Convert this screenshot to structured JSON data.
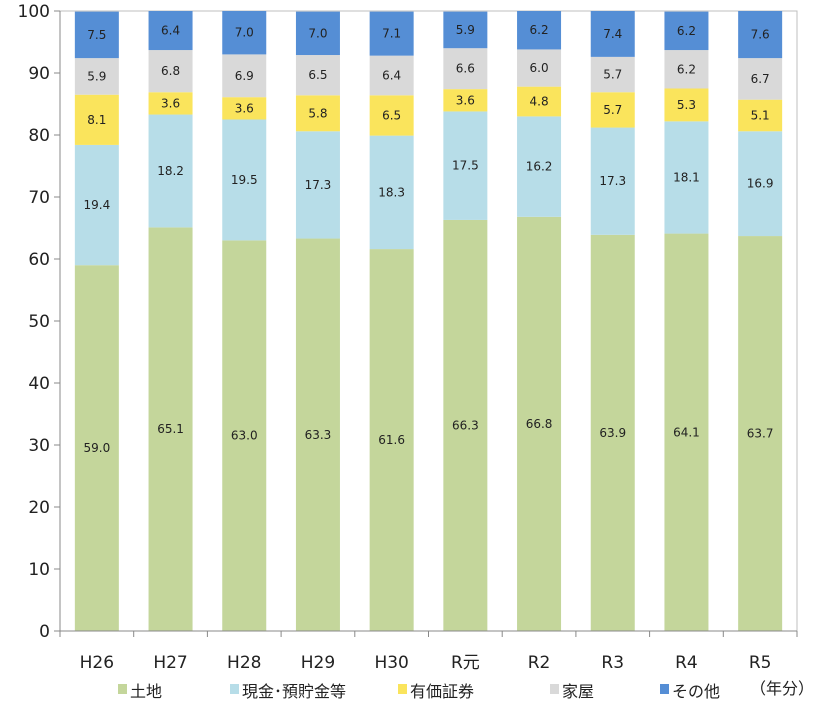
{
  "chart_data": {
    "type": "bar",
    "stacked": true,
    "title": "",
    "xlabel": "",
    "ylabel": "",
    "ylim": [
      0,
      100
    ],
    "yticks": [
      "0",
      "10",
      "20",
      "30",
      "40",
      "50",
      "60",
      "70",
      "80",
      "90",
      "100"
    ],
    "categories": [
      "H26",
      "H27",
      "H28",
      "H29",
      "H30",
      "R元",
      "R2",
      "R3",
      "R4",
      "R5"
    ],
    "unit_label": "（年分）",
    "legend_position": "bottom",
    "series": [
      {
        "name": "土地",
        "color": "#c4d69b",
        "values": [
          59.0,
          65.1,
          63.0,
          63.3,
          61.6,
          66.3,
          66.8,
          63.9,
          64.1,
          63.7
        ]
      },
      {
        "name": "現金･預貯金等",
        "color": "#b7dde8",
        "values": [
          19.4,
          18.2,
          19.5,
          17.3,
          18.3,
          17.5,
          16.2,
          17.3,
          18.1,
          16.9
        ]
      },
      {
        "name": "有価証券",
        "color": "#fae45c",
        "values": [
          8.1,
          3.6,
          3.6,
          5.8,
          6.5,
          3.6,
          4.8,
          5.7,
          5.3,
          5.1
        ]
      },
      {
        "name": "家屋",
        "color": "#d9d9d9",
        "values": [
          5.9,
          6.8,
          6.9,
          6.5,
          6.4,
          6.6,
          6.0,
          5.7,
          6.2,
          6.7
        ]
      },
      {
        "name": "その他",
        "color": "#558ed5",
        "values": [
          7.5,
          6.4,
          7.0,
          7.0,
          7.1,
          5.9,
          6.2,
          7.4,
          6.2,
          7.6
        ]
      }
    ]
  }
}
